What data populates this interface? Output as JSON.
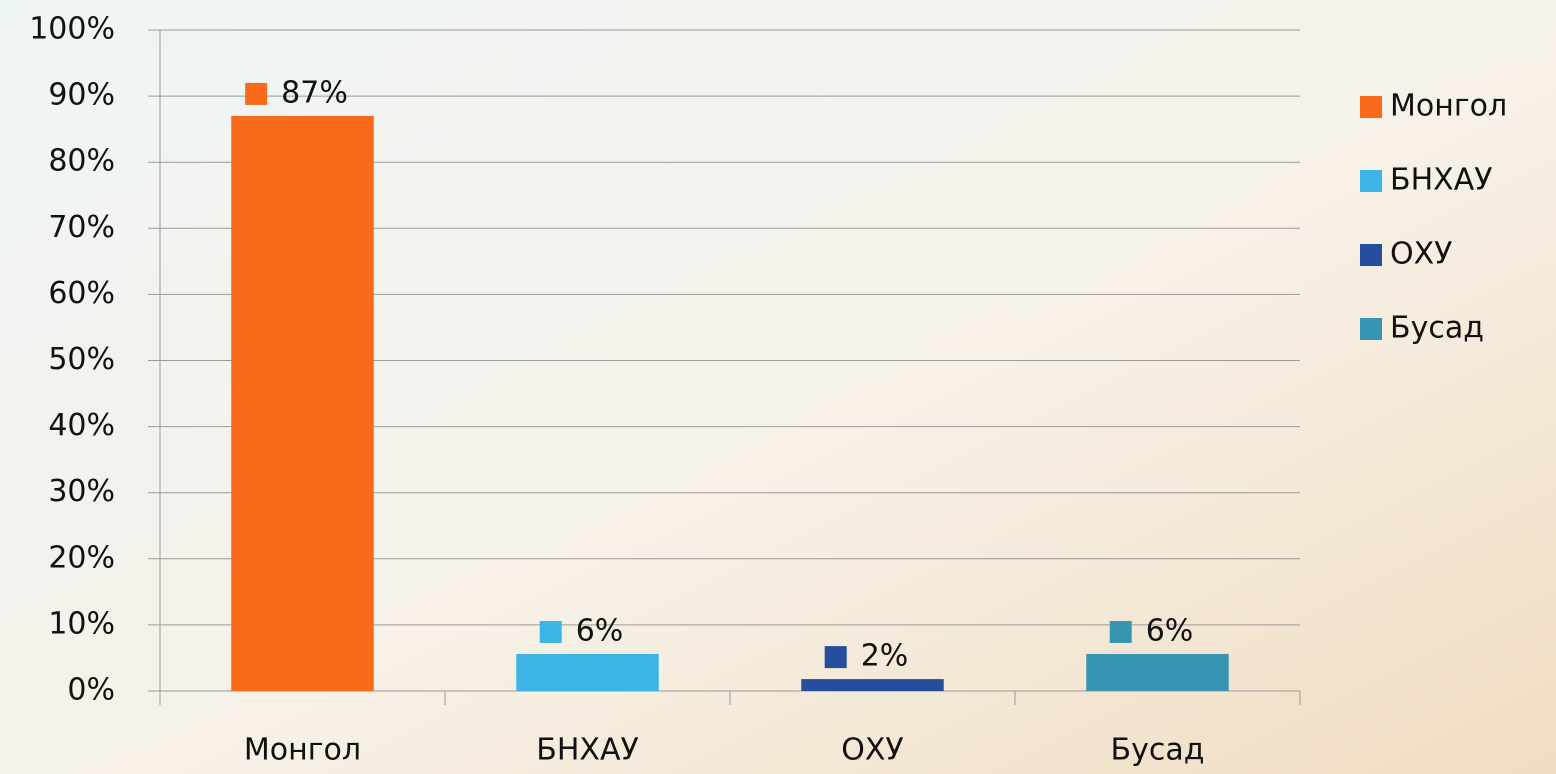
{
  "chart_data": {
    "type": "bar",
    "categories": [
      "Монгол",
      "БНХАУ",
      "ОХУ",
      "Бусад"
    ],
    "values": [
      87,
      5.6,
      1.8,
      5.6
    ],
    "value_labels": [
      "87%",
      "6%",
      "2%",
      "6%"
    ],
    "colors": [
      "#f96a1b",
      "#3cb4e5",
      "#254f9c",
      "#3795b1"
    ],
    "ylim": [
      0,
      100
    ],
    "yticks": [
      {
        "value": 0,
        "label": "0%"
      },
      {
        "value": 10,
        "label": "10%"
      },
      {
        "value": 20,
        "label": "20%"
      },
      {
        "value": 30,
        "label": "30%"
      },
      {
        "value": 40,
        "label": "40%"
      },
      {
        "value": 50,
        "label": "50%"
      },
      {
        "value": 60,
        "label": "60%"
      },
      {
        "value": 70,
        "label": "70%"
      },
      {
        "value": 80,
        "label": "80%"
      },
      {
        "value": 90,
        "label": "90%"
      },
      {
        "value": 100,
        "label": "100%"
      }
    ],
    "grid": true,
    "legend": "right"
  }
}
